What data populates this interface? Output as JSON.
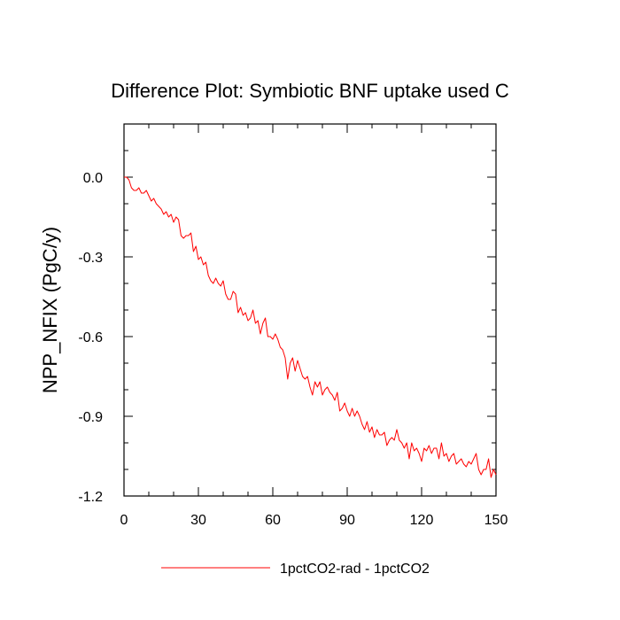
{
  "chart_data": {
    "type": "line",
    "title": "Difference Plot: Symbiotic BNF uptake used C",
    "ylabel": "NPP_NFIX  (PgC/y)",
    "xlabel": "",
    "xlim": [
      0,
      150
    ],
    "ylim": [
      -1.2,
      0.2
    ],
    "xticks": [
      0,
      30,
      60,
      90,
      120,
      150
    ],
    "xtick_labels": [
      "0",
      "30",
      "60",
      "90",
      "120",
      "150"
    ],
    "yticks": [
      0.0,
      -0.3,
      -0.6,
      -0.9,
      -1.2
    ],
    "ytick_labels": [
      "0.0",
      "-0.3",
      "-0.6",
      "-0.9",
      "-1.2"
    ],
    "grid": false,
    "legend_position": "bottom",
    "series": [
      {
        "name": "1pctCO2-rad - 1pctCO2",
        "color": "#ff0000",
        "x": [
          0,
          1,
          2,
          3,
          4,
          5,
          6,
          7,
          8,
          9,
          10,
          11,
          12,
          13,
          14,
          15,
          16,
          17,
          18,
          19,
          20,
          21,
          22,
          23,
          24,
          25,
          26,
          27,
          28,
          29,
          30,
          31,
          32,
          33,
          34,
          35,
          36,
          37,
          38,
          39,
          40,
          41,
          42,
          43,
          44,
          45,
          46,
          47,
          48,
          49,
          50,
          51,
          52,
          53,
          54,
          55,
          56,
          57,
          58,
          59,
          60,
          61,
          62,
          63,
          64,
          65,
          66,
          67,
          68,
          69,
          70,
          71,
          72,
          73,
          74,
          75,
          76,
          77,
          78,
          79,
          80,
          81,
          82,
          83,
          84,
          85,
          86,
          87,
          88,
          89,
          90,
          91,
          92,
          93,
          94,
          95,
          96,
          97,
          98,
          99,
          100,
          101,
          102,
          103,
          104,
          105,
          106,
          107,
          108,
          109,
          110,
          111,
          112,
          113,
          114,
          115,
          116,
          117,
          118,
          119,
          120,
          121,
          122,
          123,
          124,
          125,
          126,
          127,
          128,
          129,
          130,
          131,
          132,
          133,
          134,
          135,
          136,
          137,
          138,
          139,
          140,
          141,
          142,
          143,
          144,
          145,
          146,
          147,
          148,
          149,
          150
        ],
        "y": [
          0.0,
          0.0,
          -0.01,
          -0.04,
          -0.05,
          -0.05,
          -0.04,
          -0.06,
          -0.06,
          -0.05,
          -0.07,
          -0.09,
          -0.08,
          -0.1,
          -0.11,
          -0.12,
          -0.14,
          -0.13,
          -0.15,
          -0.14,
          -0.17,
          -0.15,
          -0.16,
          -0.22,
          -0.23,
          -0.22,
          -0.22,
          -0.21,
          -0.28,
          -0.26,
          -0.31,
          -0.3,
          -0.33,
          -0.32,
          -0.37,
          -0.39,
          -0.4,
          -0.38,
          -0.4,
          -0.41,
          -0.39,
          -0.44,
          -0.46,
          -0.46,
          -0.43,
          -0.44,
          -0.51,
          -0.49,
          -0.52,
          -0.51,
          -0.54,
          -0.53,
          -0.5,
          -0.55,
          -0.54,
          -0.59,
          -0.55,
          -0.53,
          -0.6,
          -0.6,
          -0.61,
          -0.59,
          -0.61,
          -0.64,
          -0.65,
          -0.68,
          -0.76,
          -0.7,
          -0.68,
          -0.73,
          -0.69,
          -0.72,
          -0.75,
          -0.76,
          -0.75,
          -0.79,
          -0.82,
          -0.77,
          -0.79,
          -0.77,
          -0.82,
          -0.8,
          -0.79,
          -0.81,
          -0.82,
          -0.84,
          -0.81,
          -0.88,
          -0.87,
          -0.85,
          -0.88,
          -0.9,
          -0.87,
          -0.9,
          -0.88,
          -0.9,
          -0.93,
          -0.95,
          -0.92,
          -0.96,
          -0.94,
          -0.98,
          -0.95,
          -0.97,
          -0.97,
          -0.96,
          -1.01,
          -0.99,
          -0.98,
          -0.99,
          -0.95,
          -0.99,
          -1.0,
          -1.02,
          -1.0,
          -1.06,
          -1.0,
          -1.03,
          -1.02,
          -1.04,
          -1.07,
          -1.02,
          -1.03,
          -1.01,
          -1.04,
          -1.02,
          -1.02,
          -1.06,
          -1.0,
          -1.05,
          -1.04,
          -1.07,
          -1.05,
          -1.04,
          -1.08,
          -1.07,
          -1.06,
          -1.08,
          -1.09,
          -1.07,
          -1.08,
          -1.06,
          -1.04,
          -1.1,
          -1.12,
          -1.1,
          -1.1,
          -1.06,
          -1.13,
          -1.1,
          -1.12
        ]
      }
    ]
  }
}
